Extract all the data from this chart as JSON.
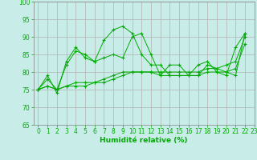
{
  "background_color": "#c8ede8",
  "grid_color": "#b0b0b0",
  "line_color": "#00aa00",
  "xlabel": "Humidité relative (%)",
  "xlabel_fontsize": 6.5,
  "tick_fontsize": 5.5,
  "ylim": [
    65,
    100
  ],
  "xlim": [
    -0.5,
    23
  ],
  "yticks": [
    65,
    70,
    75,
    80,
    85,
    90,
    95,
    100
  ],
  "xticks": [
    0,
    1,
    2,
    3,
    4,
    5,
    6,
    7,
    8,
    9,
    10,
    11,
    12,
    13,
    14,
    15,
    16,
    17,
    18,
    19,
    20,
    21,
    22,
    23
  ],
  "series": [
    [
      75,
      79,
      74,
      83,
      87,
      84,
      83,
      89,
      92,
      93,
      91,
      85,
      82,
      82,
      79,
      79,
      79,
      82,
      83,
      80,
      79,
      87,
      91
    ],
    [
      75,
      78,
      75,
      82,
      86,
      85,
      83,
      84,
      85,
      84,
      90,
      91,
      85,
      79,
      82,
      82,
      79,
      79,
      82,
      81,
      80,
      79,
      91
    ],
    [
      75,
      76,
      75,
      76,
      76,
      76,
      77,
      77,
      78,
      79,
      80,
      80,
      80,
      79,
      79,
      79,
      79,
      79,
      80,
      80,
      80,
      81,
      88
    ],
    [
      75,
      76,
      75,
      76,
      77,
      77,
      77,
      78,
      79,
      80,
      80,
      80,
      80,
      80,
      80,
      80,
      80,
      80,
      81,
      81,
      82,
      83,
      90
    ]
  ]
}
